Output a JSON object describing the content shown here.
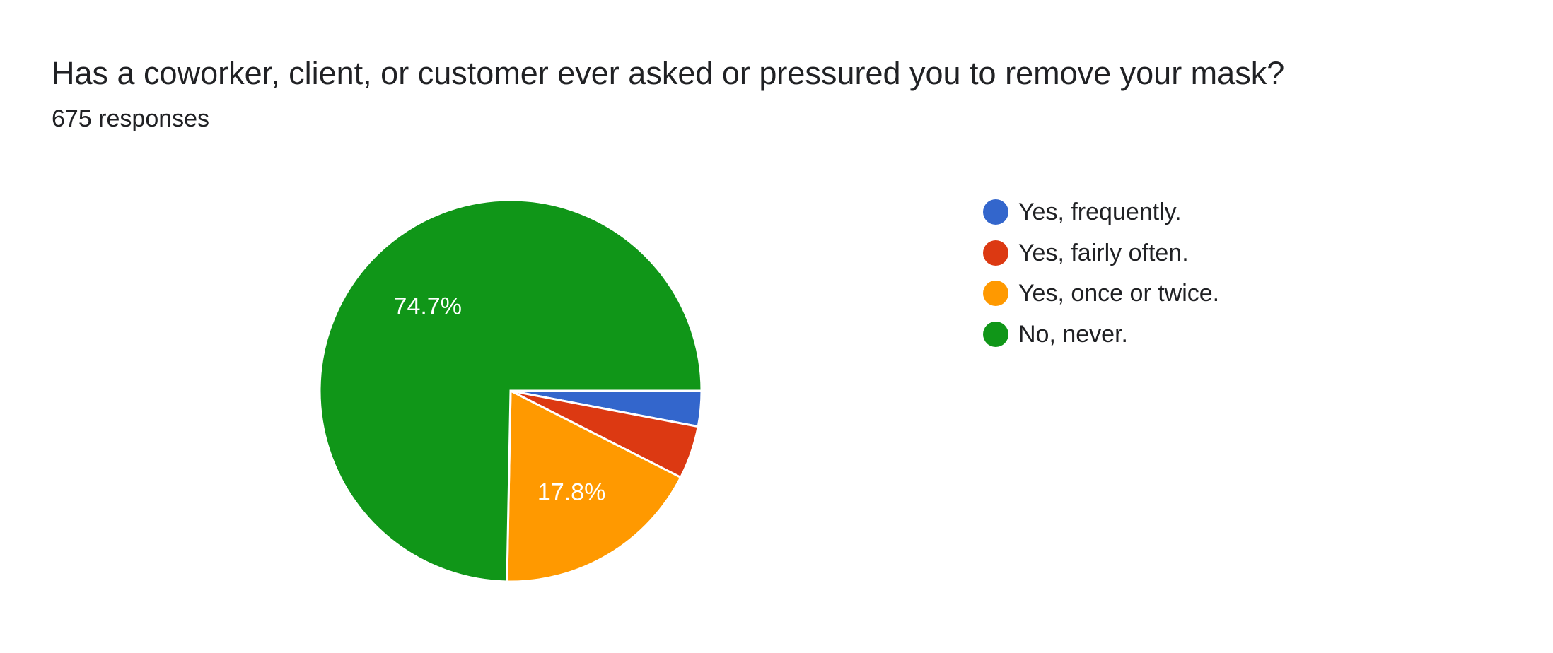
{
  "header": {
    "title": "Has a coworker, client, or customer ever asked or pressured you to remove your mask?",
    "response_count": "675 responses"
  },
  "chart_data": {
    "type": "pie",
    "title": "Has a coworker, client, or customer ever asked or pressured you to remove your mask?",
    "subtitle": "675 responses",
    "categories": [
      "Yes, frequently.",
      "Yes, fairly often.",
      "Yes, once or twice.",
      "No, never."
    ],
    "values": [
      3.0,
      4.5,
      17.8,
      74.7
    ],
    "data_labels": [
      "",
      "",
      "17.8%",
      "74.7%"
    ],
    "colors": [
      "#3366cc",
      "#dc3912",
      "#ff9900",
      "#109618"
    ],
    "legend_position": "right"
  }
}
